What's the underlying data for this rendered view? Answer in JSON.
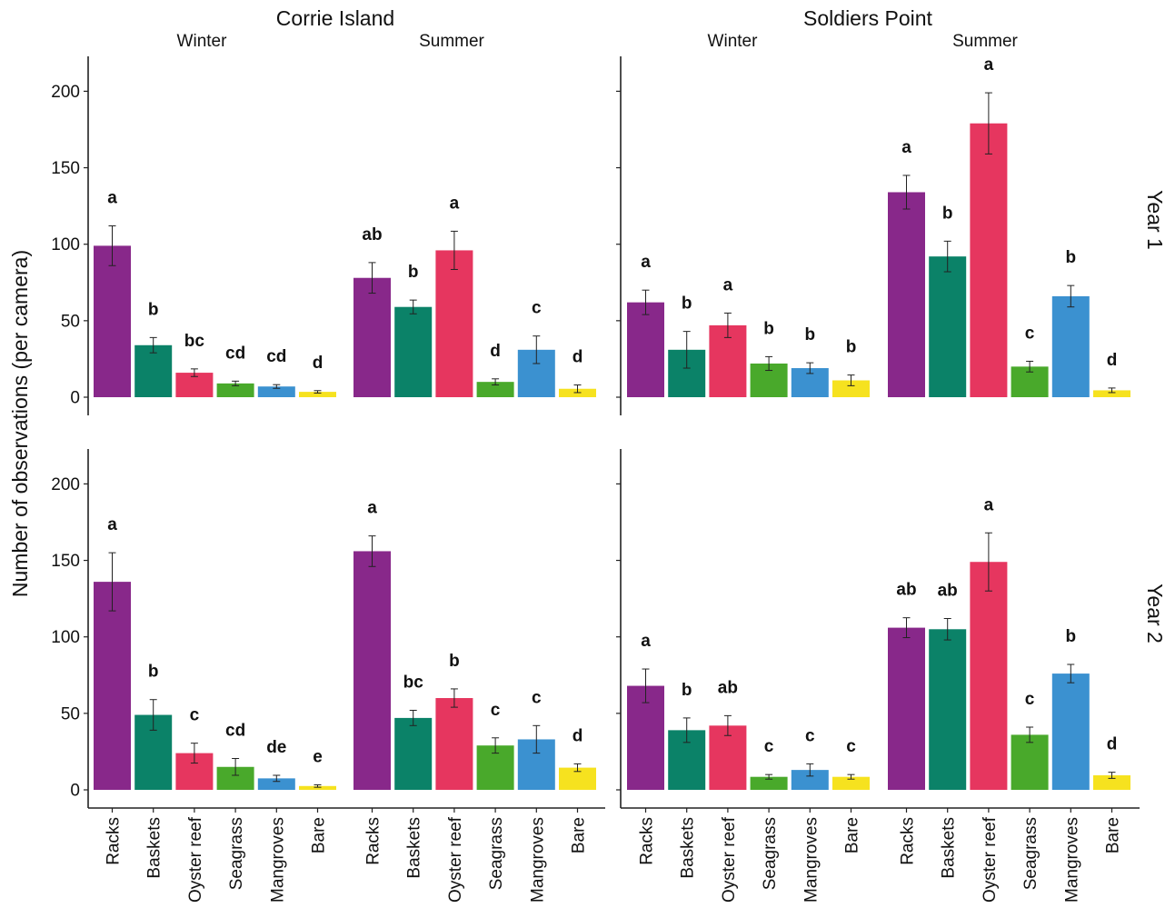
{
  "chart_data": {
    "type": "bar",
    "ylabel": "Number of observations (per camera)",
    "ylim": [
      -12,
      222
    ],
    "yticks": [
      0,
      50,
      100,
      150,
      200
    ],
    "categories": [
      "Racks",
      "Baskets",
      "Oyster reef",
      "Seagrass",
      "Mangroves",
      "Bare"
    ],
    "sites": [
      "Corrie Island",
      "Soldiers Point"
    ],
    "seasons": [
      "Winter",
      "Summer"
    ],
    "years": [
      "Year 1",
      "Year 2"
    ],
    "colors": {
      "Racks": "#88288a",
      "Baskets": "#0b8268",
      "Oyster reef": "#e6365f",
      "Seagrass": "#49a92b",
      "Mangroves": "#3b91d0",
      "Bare": "#f6e21f"
    },
    "panels": [
      {
        "site": "Corrie Island",
        "season": "Winter",
        "year": "Year 1",
        "values": [
          99,
          34,
          16,
          9,
          7,
          3.5
        ],
        "errors": [
          13,
          5,
          2.5,
          1.5,
          1.2,
          0.8
        ],
        "letters": [
          "a",
          "b",
          "bc",
          "cd",
          "cd",
          "d"
        ]
      },
      {
        "site": "Corrie Island",
        "season": "Summer",
        "year": "Year 1",
        "values": [
          78,
          59,
          96,
          10,
          31,
          5.5
        ],
        "errors": [
          10,
          4.5,
          12.5,
          2,
          9,
          2.5
        ],
        "letters": [
          "ab",
          "b",
          "a",
          "d",
          "c",
          "d"
        ]
      },
      {
        "site": "Soldiers Point",
        "season": "Winter",
        "year": "Year 1",
        "values": [
          62,
          31,
          47,
          22,
          19,
          11
        ],
        "errors": [
          8,
          12,
          8,
          4.5,
          3.5,
          3.5
        ],
        "letters": [
          "a",
          "b",
          "a",
          "b",
          "b",
          "b"
        ]
      },
      {
        "site": "Soldiers Point",
        "season": "Summer",
        "year": "Year 1",
        "values": [
          134,
          92,
          179,
          20,
          66,
          4.5
        ],
        "errors": [
          11,
          10,
          20,
          3.5,
          7,
          1.5
        ],
        "letters": [
          "a",
          "b",
          "a",
          "c",
          "b",
          "d"
        ]
      },
      {
        "site": "Corrie Island",
        "season": "Winter",
        "year": "Year 2",
        "values": [
          136,
          49,
          24,
          15,
          7.5,
          2.5
        ],
        "errors": [
          19,
          10,
          6.5,
          5.5,
          2,
          0.8
        ],
        "letters": [
          "a",
          "b",
          "c",
          "cd",
          "de",
          "e"
        ]
      },
      {
        "site": "Corrie Island",
        "season": "Summer",
        "year": "Year 2",
        "values": [
          156,
          47,
          60,
          29,
          33,
          14.5
        ],
        "errors": [
          10,
          5,
          6,
          5,
          9,
          2.5
        ],
        "letters": [
          "a",
          "bc",
          "b",
          "c",
          "c",
          "d"
        ]
      },
      {
        "site": "Soldiers Point",
        "season": "Winter",
        "year": "Year 2",
        "values": [
          68,
          39,
          42,
          8.5,
          13,
          8.5
        ],
        "errors": [
          11,
          8,
          6.5,
          1.5,
          4,
          1.5
        ],
        "letters": [
          "a",
          "b",
          "ab",
          "c",
          "c",
          "c"
        ]
      },
      {
        "site": "Soldiers Point",
        "season": "Summer",
        "year": "Year 2",
        "values": [
          106,
          105,
          149,
          36,
          76,
          9.5
        ],
        "errors": [
          6.5,
          7,
          19,
          5,
          6,
          2
        ],
        "letters": [
          "ab",
          "ab",
          "a",
          "c",
          "b",
          "d"
        ]
      }
    ]
  }
}
